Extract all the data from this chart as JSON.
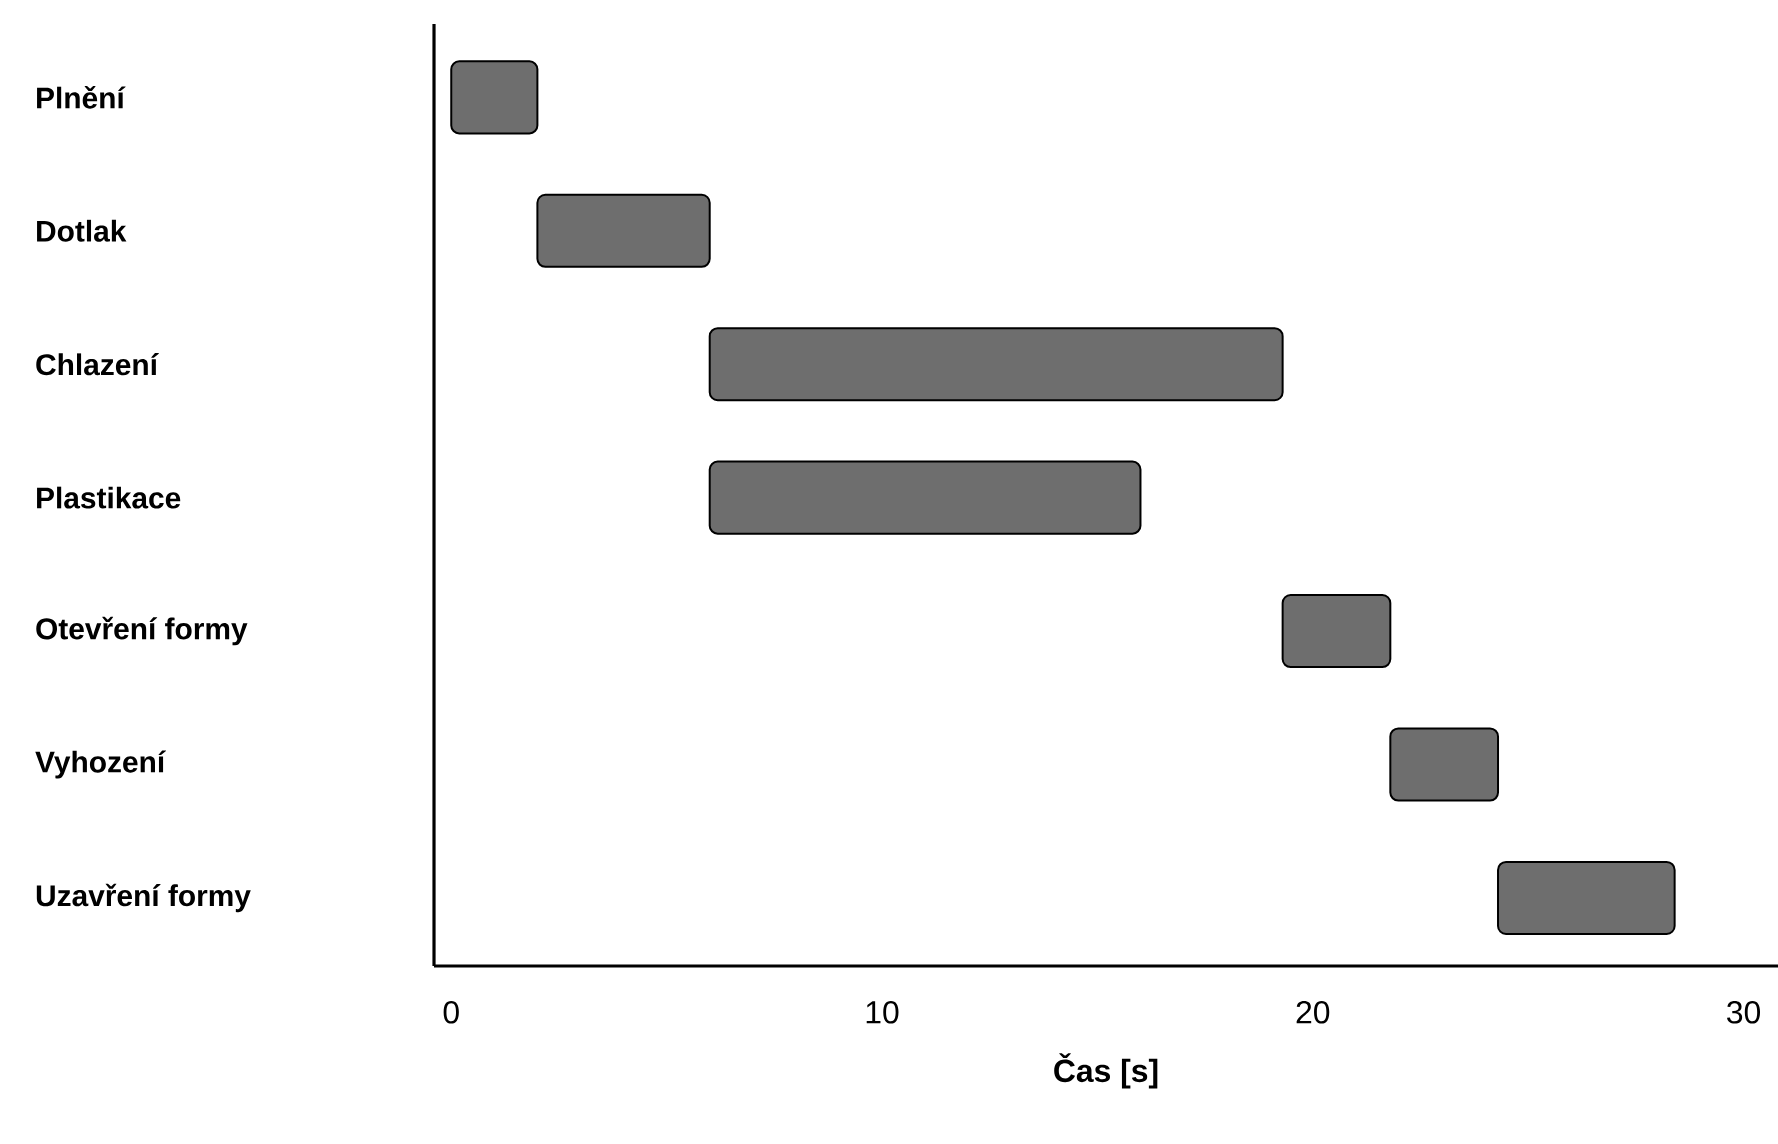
{
  "chart_data": {
    "type": "bar",
    "orientation": "horizontal",
    "categories": [
      "Plnění",
      "Dotlak",
      "Chlazení",
      "Plastikace",
      "Otevření formy",
      "Vyhození",
      "Uzavření formy"
    ],
    "base": [
      0,
      2,
      6,
      6,
      19.3,
      21.8,
      24.3
    ],
    "values": [
      2,
      4,
      13.3,
      10,
      2.5,
      2.5,
      4.1
    ],
    "color": "#6e6e6e",
    "xlabel": "Čas [s]",
    "xlim": [
      -0.4,
      30.8
    ],
    "xticks": [
      0,
      10,
      20,
      30
    ]
  }
}
